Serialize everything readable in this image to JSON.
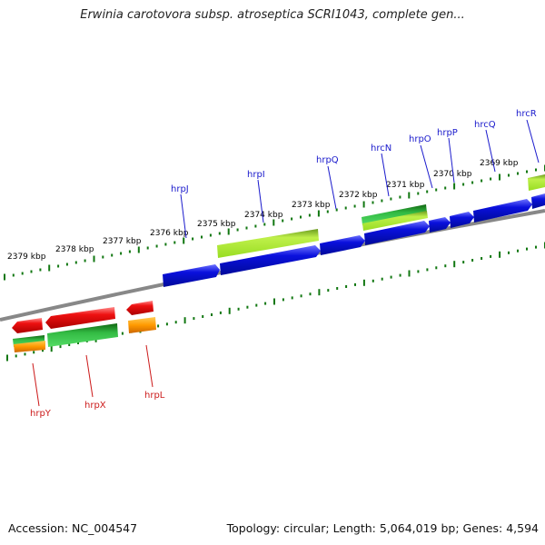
{
  "title": "Erwinia carotovora subsp. atroseptica SCRI1043, complete gen...",
  "footer": {
    "accession": "Accession: NC_004547",
    "summary": "Topology: circular; Length: 5,064,019 bp; Genes: 4,594"
  },
  "colors": {
    "forward_label": "#1a1acc",
    "reverse_label": "#cc1a1a",
    "cds_forward": "#0a10dd",
    "cds_reverse": "#ee1111",
    "gene_light": "#aaee33",
    "gene_green": "#22aa33",
    "gene_orange": "#ff9900",
    "backbone": "#888888",
    "ruler": "#117711"
  },
  "ruler": {
    "ticks": [
      "2379 kbp",
      "2378 kbp",
      "2377 kbp",
      "2376 kbp",
      "2375 kbp",
      "2374 kbp",
      "2373 kbp",
      "2372 kbp",
      "2371 kbp",
      "2370 kbp",
      "2369 kbp"
    ]
  },
  "forward_genes": [
    "hrpJ",
    "hrpI",
    "hrpQ",
    "hrcN",
    "hrpO",
    "hrpP",
    "hrcQ",
    "hrcR"
  ],
  "reverse_genes": [
    "hrpY",
    "hrpX",
    "hrpL"
  ]
}
